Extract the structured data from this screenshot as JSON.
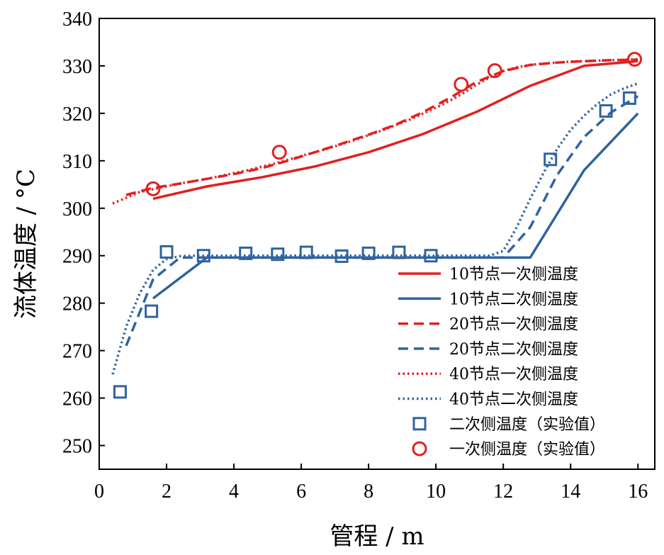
{
  "chart_data": {
    "type": "line",
    "title": "",
    "xlabel": "管程 / m",
    "ylabel": "流体温度 / °C",
    "xlim": [
      0,
      16.5
    ],
    "ylim": [
      245,
      340
    ],
    "xticks": [
      0,
      2,
      4,
      6,
      8,
      10,
      12,
      14,
      16
    ],
    "yticks": [
      250,
      260,
      270,
      280,
      290,
      300,
      310,
      320,
      330,
      340
    ],
    "legend_position": "bottom-right",
    "colors": {
      "primary": "#e02020",
      "secondary": "#2f63a0"
    },
    "series": [
      {
        "name": "10节点一次侧温度",
        "color": "#e02020",
        "style": "solid",
        "x": [
          1.6,
          3.2,
          4.8,
          6.4,
          8.0,
          9.6,
          11.2,
          12.8,
          14.4,
          16.0
        ],
        "y": [
          302.0,
          304.6,
          306.5,
          308.8,
          311.8,
          315.6,
          320.3,
          325.8,
          330.0,
          331.0
        ]
      },
      {
        "name": "10节点二次侧温度",
        "color": "#2f63a0",
        "style": "solid",
        "x": [
          1.6,
          3.2,
          4.8,
          6.4,
          8.0,
          9.6,
          11.2,
          12.8,
          14.4,
          16.0
        ],
        "y": [
          281.0,
          289.6,
          289.6,
          289.6,
          289.6,
          289.6,
          289.6,
          289.6,
          308.0,
          320.0
        ]
      },
      {
        "name": "20节点一次侧温度",
        "color": "#e02020",
        "style": "dash",
        "x": [
          0.8,
          1.6,
          2.4,
          3.2,
          4.0,
          4.8,
          5.6,
          6.4,
          7.2,
          8.0,
          8.8,
          9.6,
          10.4,
          11.2,
          12.0,
          12.8,
          13.6,
          14.4,
          15.2,
          16.0
        ],
        "y": [
          302.8,
          304.3,
          305.2,
          306.2,
          307.2,
          308.4,
          310.0,
          311.8,
          313.6,
          315.5,
          317.6,
          320.2,
          323.2,
          326.6,
          328.9,
          330.2,
          330.7,
          331.0,
          331.2,
          331.3
        ]
      },
      {
        "name": "20节点二次侧温度",
        "color": "#2f63a0",
        "style": "dash",
        "x": [
          0.8,
          1.6,
          2.4,
          3.2,
          4.0,
          4.8,
          5.6,
          6.4,
          7.2,
          8.0,
          8.8,
          9.6,
          10.4,
          11.2,
          12.0,
          12.8,
          13.6,
          14.4,
          15.2,
          16.0
        ],
        "y": [
          271.0,
          285.0,
          289.6,
          289.6,
          289.6,
          289.6,
          289.6,
          289.6,
          289.6,
          289.6,
          289.6,
          289.6,
          289.6,
          289.6,
          289.6,
          296.0,
          307.0,
          315.0,
          320.2,
          323.6
        ]
      },
      {
        "name": "40节点一次侧温度",
        "color": "#e02020",
        "style": "dot",
        "x": [
          0.4,
          0.8,
          1.2,
          1.6,
          2.0,
          2.4,
          2.8,
          3.2,
          3.6,
          4.0,
          4.4,
          4.8,
          5.2,
          5.6,
          6.0,
          6.4,
          6.8,
          7.2,
          7.6,
          8.0,
          8.4,
          8.8,
          9.2,
          9.6,
          10.0,
          10.4,
          10.8,
          11.2,
          11.6,
          12.0,
          12.4,
          12.8,
          13.2,
          13.6,
          14.0,
          14.4,
          14.8,
          15.2,
          15.6,
          16.0
        ],
        "y": [
          301.0,
          302.2,
          303.4,
          304.0,
          304.6,
          305.2,
          305.7,
          306.2,
          306.8,
          307.4,
          308.0,
          308.7,
          309.4,
          310.2,
          311.0,
          311.8,
          312.6,
          313.5,
          314.4,
          315.4,
          316.4,
          317.5,
          318.6,
          319.9,
          321.2,
          322.6,
          324.2,
          326.0,
          327.6,
          328.9,
          329.7,
          330.2,
          330.5,
          330.7,
          330.9,
          331.0,
          331.1,
          331.2,
          331.3,
          331.4
        ]
      },
      {
        "name": "40节点二次侧温度",
        "color": "#2f63a0",
        "style": "dot",
        "x": [
          0.4,
          0.8,
          1.2,
          1.6,
          2.0,
          2.4,
          2.8,
          3.2,
          4.0,
          5.0,
          6.0,
          7.0,
          8.0,
          9.0,
          10.0,
          11.0,
          11.6,
          12.0,
          12.4,
          12.8,
          13.2,
          13.6,
          14.0,
          14.4,
          14.8,
          15.2,
          15.6,
          16.0
        ],
        "y": [
          265.0,
          275.0,
          282.0,
          287.0,
          289.3,
          289.9,
          290.0,
          290.0,
          290.0,
          290.0,
          290.0,
          290.0,
          290.0,
          290.0,
          290.0,
          290.0,
          290.0,
          291.0,
          296.0,
          302.0,
          307.5,
          312.5,
          316.5,
          319.5,
          322.0,
          324.0,
          325.3,
          326.3
        ]
      },
      {
        "name": "二次侧温度（实验值）",
        "color": "#2f63a0",
        "style": "marker-square",
        "x": [
          0.62,
          1.55,
          2.0,
          3.1,
          4.35,
          5.3,
          6.15,
          7.2,
          8.0,
          8.9,
          9.85,
          13.4,
          15.05,
          15.75
        ],
        "y": [
          261.3,
          278.3,
          290.8,
          290.0,
          290.5,
          290.3,
          290.7,
          289.9,
          290.5,
          290.7,
          290.0,
          310.3,
          320.5,
          323.2
        ]
      },
      {
        "name": "一次侧温度（实验值）",
        "color": "#e02020",
        "style": "marker-circle",
        "x": [
          1.6,
          5.35,
          10.75,
          11.75,
          15.9
        ],
        "y": [
          304.1,
          311.8,
          326.1,
          329.0,
          331.4
        ]
      }
    ]
  }
}
